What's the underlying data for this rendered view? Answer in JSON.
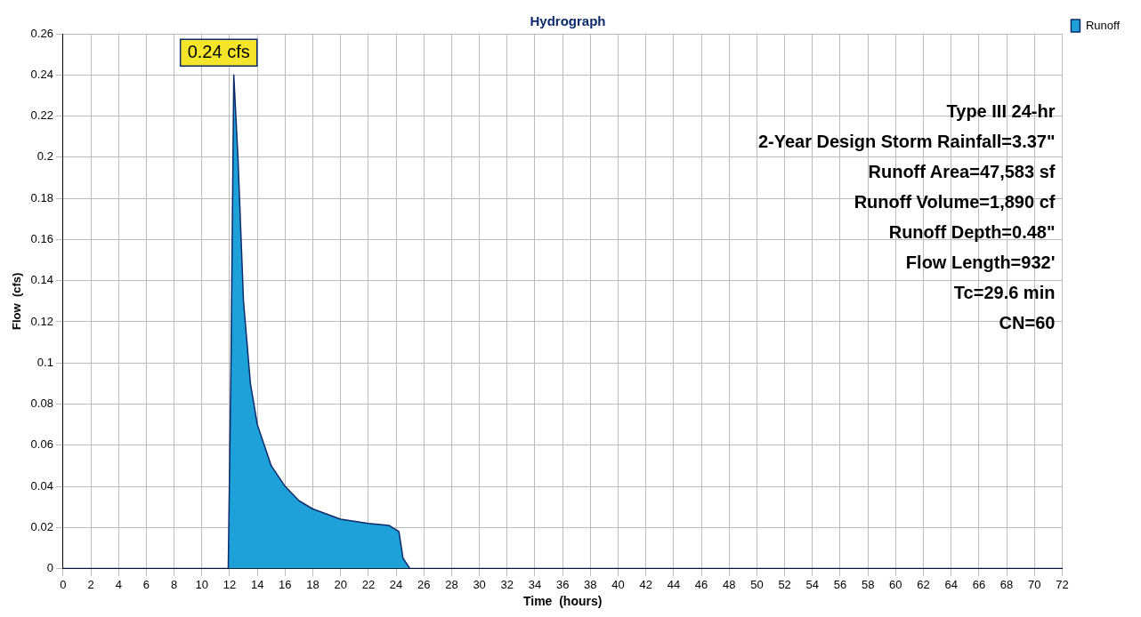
{
  "chart_data": {
    "type": "area",
    "title": "Hydrograph",
    "xlabel": "Time  (hours)",
    "ylabel": "Flow  (cfs)",
    "x": [
      0,
      11.9,
      12.1,
      12.3,
      12.6,
      13,
      13.5,
      14,
      15,
      16,
      17,
      18,
      20,
      22,
      23.5,
      24.2,
      24.5,
      25,
      72
    ],
    "series": [
      {
        "name": "Runoff",
        "color": "#1ea0d8",
        "values": [
          0,
          0,
          0.1,
          0.24,
          0.2,
          0.13,
          0.09,
          0.07,
          0.05,
          0.04,
          0.033,
          0.029,
          0.024,
          0.022,
          0.021,
          0.018,
          0.005,
          0,
          0
        ]
      }
    ],
    "xlim": [
      0,
      72
    ],
    "xticks": [
      0,
      2,
      4,
      6,
      8,
      10,
      12,
      14,
      16,
      18,
      20,
      22,
      24,
      26,
      28,
      30,
      32,
      34,
      36,
      38,
      40,
      42,
      44,
      46,
      48,
      50,
      52,
      54,
      56,
      58,
      60,
      62,
      64,
      66,
      68,
      70,
      72
    ],
    "ylim": [
      0,
      0.26
    ],
    "yticks": [
      0,
      0.02,
      0.04,
      0.06,
      0.08,
      0.1,
      0.12,
      0.14,
      0.16,
      0.18,
      0.2,
      0.22,
      0.24,
      0.26
    ],
    "grid": true,
    "legend": "top right",
    "line_style": "solid",
    "marker": "none",
    "annotations": [
      {
        "text": "0.24 cfs",
        "x": 12.3,
        "y": 0.24
      },
      "Type III 24-hr",
      "2-Year Design Storm Rainfall=3.37\"",
      "Runoff Area=47,583 sf",
      "Runoff Volume=1,890 cf",
      "Runoff Depth=0.48\"",
      "Flow Length=932'",
      "Tc=29.6 min",
      "CN=60"
    ]
  }
}
